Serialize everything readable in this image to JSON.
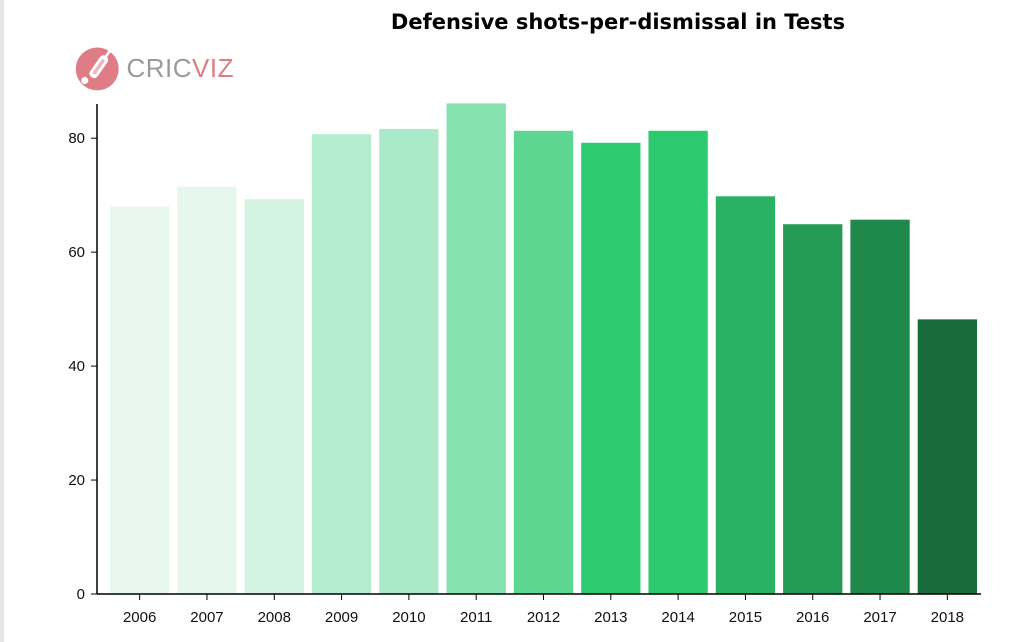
{
  "logo": {
    "text_part1": "CRIC",
    "text_part2": "VIZ",
    "icon": "cricket-bat-ball-icon"
  },
  "chart_data": {
    "type": "bar",
    "title": "Defensive shots-per-dismissal in Tests",
    "xlabel": "",
    "ylabel": "",
    "categories": [
      "2006",
      "2007",
      "2008",
      "2009",
      "2010",
      "2011",
      "2012",
      "2013",
      "2014",
      "2015",
      "2016",
      "2017",
      "2018"
    ],
    "values": [
      68.0,
      71.5,
      69.3,
      80.7,
      81.6,
      86.1,
      81.3,
      79.2,
      81.3,
      69.8,
      64.9,
      65.7,
      48.2
    ],
    "colors": [
      "#e8f8ef",
      "#e6f8ee",
      "#d4f3e2",
      "#b3ecce",
      "#aaeac9",
      "#85e1ae",
      "#5dd78f",
      "#2ecc71",
      "#2dc96e",
      "#29b263",
      "#249a55",
      "#1f894c",
      "#186b3a"
    ],
    "ylim": [
      0,
      86
    ],
    "yticks": [
      0,
      20,
      40,
      60,
      80
    ],
    "grid": false,
    "legend": "none"
  }
}
